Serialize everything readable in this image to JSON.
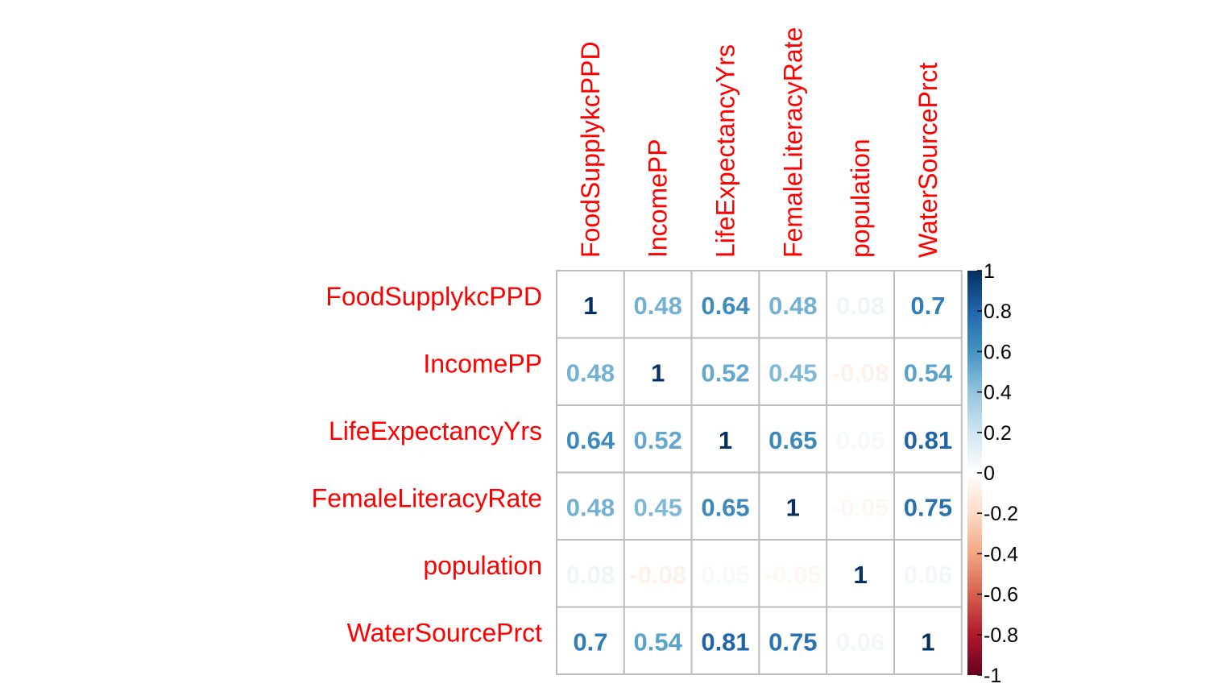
{
  "chart_data": {
    "type": "heatmap",
    "variables": [
      "FoodSupplykcPPD",
      "IncomePP",
      "LifeExpectancyYrs",
      "FemaleLiteracyRate",
      "population",
      "WaterSourcePrct"
    ],
    "labels": [
      [
        "1",
        "0.48",
        "0.64",
        "0.48",
        "0.08",
        "0.7"
      ],
      [
        "0.48",
        "1",
        "0.52",
        "0.45",
        "-0.08",
        "0.54"
      ],
      [
        "0.64",
        "0.52",
        "1",
        "0.65",
        "0.05",
        "0.81"
      ],
      [
        "0.48",
        "0.45",
        "0.65",
        "1",
        "-0.05",
        "0.75"
      ],
      [
        "0.08",
        "-0.08",
        "0.05",
        "-0.05",
        "1",
        "0.06"
      ],
      [
        "0.7",
        "0.54",
        "0.81",
        "0.75",
        "0.06",
        "1"
      ]
    ],
    "values": [
      [
        1,
        0.48,
        0.64,
        0.48,
        0.08,
        0.7
      ],
      [
        0.48,
        1,
        0.52,
        0.45,
        -0.08,
        0.54
      ],
      [
        0.64,
        0.52,
        1,
        0.65,
        0.05,
        0.81
      ],
      [
        0.48,
        0.45,
        0.65,
        1,
        -0.05,
        0.75
      ],
      [
        0.08,
        -0.08,
        0.05,
        -0.05,
        1,
        0.06
      ],
      [
        0.7,
        0.54,
        0.81,
        0.75,
        0.06,
        1
      ]
    ],
    "color_scale": {
      "range": [
        -1,
        1
      ],
      "ticks": [
        "1",
        "0.8",
        "0.6",
        "0.4",
        "0.2",
        "0",
        "-0.2",
        "-0.4",
        "-0.6",
        "-0.8",
        "-1"
      ],
      "tick_values": [
        1,
        0.8,
        0.6,
        0.4,
        0.2,
        0,
        -0.2,
        -0.4,
        -0.6,
        -0.8,
        -1
      ],
      "stops": [
        "#67001F",
        "#B2182B",
        "#D6604D",
        "#F4A582",
        "#FDDBC7",
        "#FFFFFF",
        "#D1E5F0",
        "#92C5DE",
        "#4393C3",
        "#2166AC",
        "#053061"
      ]
    },
    "label_color": "#FF0000",
    "grid_color": "#BEBEBE"
  }
}
